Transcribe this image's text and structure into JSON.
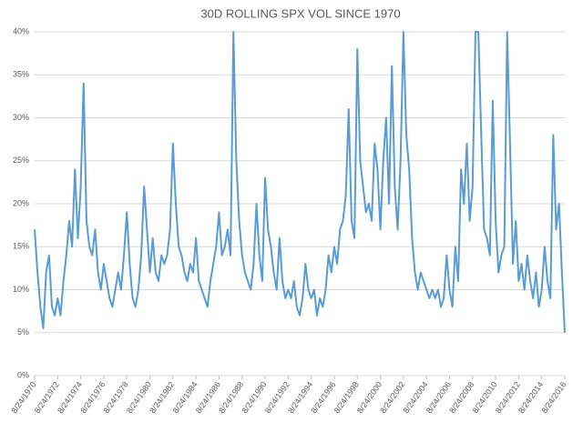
{
  "chart_data": {
    "type": "line",
    "title": "30D ROLLING SPX VOL SINCE 1970",
    "x": [
      1970.65,
      1970.9,
      1971.15,
      1971.4,
      1971.65,
      1971.9,
      1972.15,
      1972.4,
      1972.65,
      1972.9,
      1973.15,
      1973.4,
      1973.65,
      1973.9,
      1974.15,
      1974.4,
      1974.65,
      1974.9,
      1975.15,
      1975.4,
      1975.65,
      1975.9,
      1976.15,
      1976.4,
      1976.65,
      1976.9,
      1977.15,
      1977.4,
      1977.65,
      1977.9,
      1978.15,
      1978.4,
      1978.65,
      1978.9,
      1979.15,
      1979.4,
      1979.65,
      1979.9,
      1980.15,
      1980.4,
      1980.65,
      1980.9,
      1981.15,
      1981.4,
      1981.65,
      1981.9,
      1982.15,
      1982.4,
      1982.65,
      1982.9,
      1983.15,
      1983.4,
      1983.65,
      1983.9,
      1984.15,
      1984.4,
      1984.65,
      1984.9,
      1985.15,
      1985.4,
      1985.65,
      1985.9,
      1986.15,
      1986.4,
      1986.65,
      1986.9,
      1987.15,
      1987.4,
      1987.65,
      1987.9,
      1988.15,
      1988.4,
      1988.65,
      1988.9,
      1989.15,
      1989.4,
      1989.65,
      1989.9,
      1990.15,
      1990.4,
      1990.65,
      1990.9,
      1991.15,
      1991.4,
      1991.65,
      1991.9,
      1992.15,
      1992.4,
      1992.65,
      1992.9,
      1993.15,
      1993.4,
      1993.65,
      1993.9,
      1994.15,
      1994.4,
      1994.65,
      1994.9,
      1995.15,
      1995.4,
      1995.65,
      1995.9,
      1996.15,
      1996.4,
      1996.65,
      1996.9,
      1997.15,
      1997.4,
      1997.65,
      1997.9,
      1998.15,
      1998.4,
      1998.65,
      1998.9,
      1999.15,
      1999.4,
      1999.65,
      1999.9,
      2000.15,
      2000.4,
      2000.65,
      2000.9,
      2001.15,
      2001.4,
      2001.65,
      2001.9,
      2002.15,
      2002.4,
      2002.65,
      2002.9,
      2003.15,
      2003.4,
      2003.65,
      2003.9,
      2004.15,
      2004.4,
      2004.65,
      2004.9,
      2005.15,
      2005.4,
      2005.65,
      2005.9,
      2006.15,
      2006.4,
      2006.65,
      2006.9,
      2007.15,
      2007.4,
      2007.65,
      2007.9,
      2008.15,
      2008.4,
      2008.65,
      2008.9,
      2009.15,
      2009.4,
      2009.65,
      2009.9,
      2010.15,
      2010.4,
      2010.65,
      2010.9,
      2011.15,
      2011.4,
      2011.65,
      2011.9,
      2012.15,
      2012.4,
      2012.65,
      2012.9,
      2013.15,
      2013.4,
      2013.65,
      2013.9,
      2014.15,
      2014.4,
      2014.65,
      2014.9,
      2015.15,
      2015.4,
      2015.65,
      2015.9,
      2016.15,
      2016.4,
      2016.65
    ],
    "series": [
      {
        "color": "#5b9bd5",
        "values": [
          17,
          12,
          8,
          5.5,
          12,
          14,
          8,
          7,
          9,
          7,
          11,
          14,
          18,
          15,
          24,
          16,
          22,
          34,
          18,
          15,
          14,
          17,
          12,
          10,
          13,
          11,
          9,
          8,
          10,
          12,
          10,
          14,
          19,
          13,
          9,
          8,
          10,
          14,
          22,
          17,
          12,
          16,
          12,
          11,
          14,
          13,
          14,
          17,
          27,
          20,
          15,
          14,
          12,
          11,
          13,
          12,
          16,
          11,
          10,
          9,
          8,
          11,
          13,
          15,
          19,
          14,
          15,
          17,
          14,
          40,
          25,
          18,
          14,
          12,
          11,
          10,
          13,
          20,
          14,
          11,
          23,
          17,
          15,
          12,
          10,
          16,
          11,
          9,
          10,
          9,
          11,
          8,
          7,
          9,
          13,
          10,
          9,
          10,
          7,
          9,
          8,
          10,
          14,
          12,
          15,
          13,
          17,
          18,
          21,
          31,
          18,
          16,
          38,
          25,
          22,
          19,
          20,
          18,
          27,
          24,
          17,
          25,
          30,
          20,
          36,
          22,
          17,
          25,
          40,
          28,
          24,
          16,
          12,
          10,
          12,
          11,
          10,
          9,
          10,
          9,
          10,
          8,
          9,
          14,
          10,
          8,
          15,
          11,
          24,
          20,
          27,
          18,
          22,
          40,
          40,
          28,
          17,
          16,
          14,
          32,
          18,
          12,
          14,
          15,
          40,
          27,
          13,
          18,
          11,
          13,
          10,
          14,
          11,
          9,
          12,
          8,
          10,
          15,
          11,
          9,
          28,
          17,
          20,
          12,
          5
        ]
      }
    ],
    "xlim": [
      1970.65,
      2016.65
    ],
    "xticks": [
      {
        "value": 1970.65,
        "label": "8/24/1970"
      },
      {
        "value": 1972.65,
        "label": "8/24/1972"
      },
      {
        "value": 1974.65,
        "label": "8/24/1974"
      },
      {
        "value": 1976.65,
        "label": "8/24/1976"
      },
      {
        "value": 1978.65,
        "label": "8/24/1978"
      },
      {
        "value": 1980.65,
        "label": "8/24/1980"
      },
      {
        "value": 1982.65,
        "label": "8/24/1982"
      },
      {
        "value": 1984.65,
        "label": "8/24/1984"
      },
      {
        "value": 1986.65,
        "label": "8/24/1986"
      },
      {
        "value": 1988.65,
        "label": "8/24/1988"
      },
      {
        "value": 1990.65,
        "label": "8/24/1990"
      },
      {
        "value": 1992.65,
        "label": "8/24/1992"
      },
      {
        "value": 1994.65,
        "label": "8/24/1994"
      },
      {
        "value": 1996.65,
        "label": "8/24/1996"
      },
      {
        "value": 1998.65,
        "label": "8/24/1998"
      },
      {
        "value": 2000.65,
        "label": "8/24/2000"
      },
      {
        "value": 2002.65,
        "label": "8/24/2002"
      },
      {
        "value": 2004.65,
        "label": "8/24/2004"
      },
      {
        "value": 2006.65,
        "label": "8/24/2006"
      },
      {
        "value": 2008.65,
        "label": "8/24/2008"
      },
      {
        "value": 2010.65,
        "label": "8/24/2010"
      },
      {
        "value": 2012.65,
        "label": "8/24/2012"
      },
      {
        "value": 2014.65,
        "label": "8/24/2014"
      },
      {
        "value": 2016.65,
        "label": "8/24/2016"
      }
    ],
    "ylim": [
      0,
      40
    ],
    "yticks": [
      {
        "value": 0,
        "label": "0%"
      },
      {
        "value": 5,
        "label": "5%"
      },
      {
        "value": 10,
        "label": "10%"
      },
      {
        "value": 15,
        "label": "15%"
      },
      {
        "value": 20,
        "label": "20%"
      },
      {
        "value": 25,
        "label": "25%"
      },
      {
        "value": 30,
        "label": "30%"
      },
      {
        "value": 35,
        "label": "35%"
      },
      {
        "value": 40,
        "label": "40%"
      }
    ],
    "grid": true
  }
}
